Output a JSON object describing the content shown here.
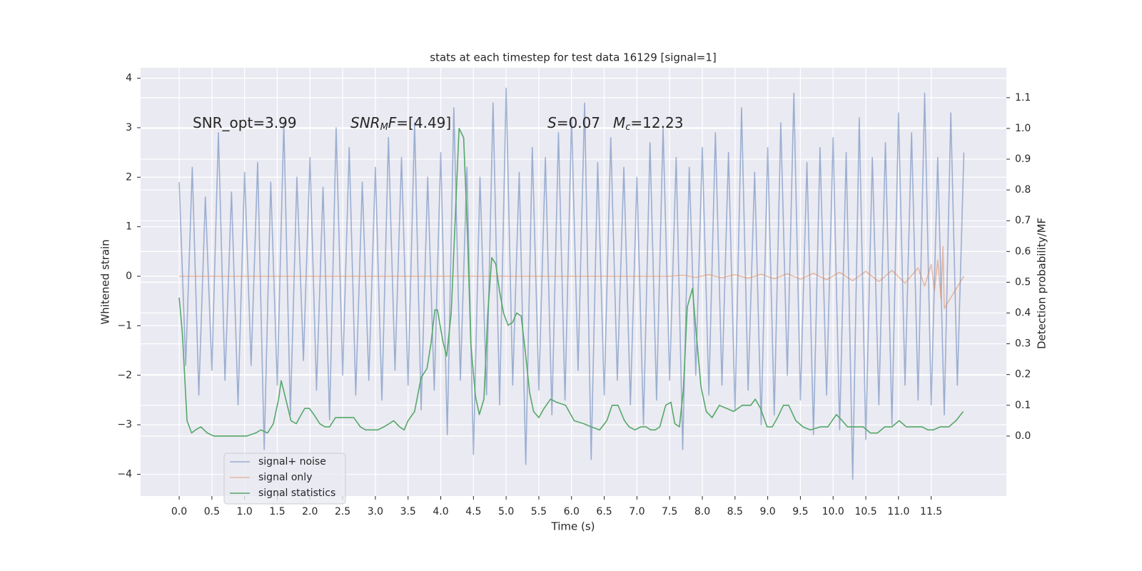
{
  "chart_data": {
    "type": "line",
    "title": "stats at each timestep for test data 16129 [signal=1]",
    "xlabel": "Time (s)",
    "ylabel": "Whitened strain",
    "y2label": "Detection probability/MF",
    "xlim": [
      -0.59,
      12.65
    ],
    "ylim": [
      -4.44,
      4.21
    ],
    "y2lim": [
      -0.195,
      1.197
    ],
    "xticks": [
      {
        "value": 0,
        "label": "0.0"
      },
      {
        "value": 0.5,
        "label": "0.5"
      },
      {
        "value": 1,
        "label": "1.0"
      },
      {
        "value": 1.5,
        "label": "1.5"
      },
      {
        "value": 2,
        "label": "2.0"
      },
      {
        "value": 2.5,
        "label": "2.5"
      },
      {
        "value": 3,
        "label": "3.0"
      },
      {
        "value": 3.5,
        "label": "3.5"
      },
      {
        "value": 4,
        "label": "4.0"
      },
      {
        "value": 4.5,
        "label": "4.5"
      },
      {
        "value": 5,
        "label": "5.0"
      },
      {
        "value": 5.5,
        "label": "5.5"
      },
      {
        "value": 6,
        "label": "6.0"
      },
      {
        "value": 6.5,
        "label": "6.5"
      },
      {
        "value": 7,
        "label": "7.0"
      },
      {
        "value": 7.5,
        "label": "7.5"
      },
      {
        "value": 8,
        "label": "8.0"
      },
      {
        "value": 8.5,
        "label": "8.5"
      },
      {
        "value": 9,
        "label": "9.0"
      },
      {
        "value": 9.5,
        "label": "9.5"
      },
      {
        "value": 10,
        "label": "10.0"
      },
      {
        "value": 10.5,
        "label": "10.5"
      },
      {
        "value": 11,
        "label": "11.0"
      },
      {
        "value": 11.5,
        "label": "11.5"
      }
    ],
    "yticks": [
      {
        "value": -4,
        "label": "−4"
      },
      {
        "value": -3,
        "label": "−3"
      },
      {
        "value": -2,
        "label": "−2"
      },
      {
        "value": -1,
        "label": "−1"
      },
      0,
      1,
      2,
      3,
      4
    ],
    "y2ticks": [
      {
        "value": 0,
        "label": "0.0"
      },
      {
        "value": 0.1,
        "label": "0.1"
      },
      {
        "value": 0.2,
        "label": "0.2"
      },
      {
        "value": 0.3,
        "label": "0.3"
      },
      {
        "value": 0.4,
        "label": "0.4"
      },
      {
        "value": 0.5,
        "label": "0.5"
      },
      {
        "value": 0.6,
        "label": "0.6"
      },
      {
        "value": 0.7,
        "label": "0.7"
      },
      {
        "value": 0.8,
        "label": "0.8"
      },
      {
        "value": 0.9,
        "label": "0.9"
      },
      {
        "value": 1.0,
        "label": "1.0"
      },
      {
        "value": 1.1,
        "label": "1.1"
      }
    ],
    "grid": true,
    "legend_loc": "lower left",
    "annotations": [
      [
        {
          "text": "SNR_opt=3.99",
          "style": "normal"
        }
      ],
      [
        {
          "text": "SNR",
          "style": "italic"
        },
        {
          "text": "M",
          "style": "sub"
        },
        {
          "text": "F",
          "style": "italic"
        },
        {
          "text": "=[4.49]",
          "style": "normal"
        }
      ],
      [
        {
          "text": "S",
          "style": "italic"
        },
        {
          "text": "=0.07",
          "style": "normal"
        }
      ],
      [
        {
          "text": "M",
          "style": "italic"
        },
        {
          "text": "c",
          "style": "sub"
        },
        {
          "text": "=12.23",
          "style": "normal"
        }
      ]
    ],
    "series": [
      {
        "name": "signal+ noise",
        "color": "#4c72b0",
        "opacity": 0.5,
        "axis": "y",
        "x": [
          0.0,
          0.1,
          0.2,
          0.3,
          0.4,
          0.5,
          0.6,
          0.7,
          0.8,
          0.9,
          1.0,
          1.1,
          1.2,
          1.3,
          1.4,
          1.5,
          1.6,
          1.7,
          1.8,
          1.9,
          2.0,
          2.1,
          2.2,
          2.3,
          2.4,
          2.5,
          2.6,
          2.7,
          2.8,
          2.9,
          3.0,
          3.1,
          3.2,
          3.3,
          3.4,
          3.5,
          3.6,
          3.7,
          3.8,
          3.9,
          4.0,
          4.1,
          4.2,
          4.3,
          4.4,
          4.5,
          4.6,
          4.7,
          4.8,
          4.9,
          5.0,
          5.1,
          5.2,
          5.3,
          5.4,
          5.5,
          5.6,
          5.7,
          5.8,
          5.9,
          6.0,
          6.1,
          6.2,
          6.3,
          6.4,
          6.5,
          6.6,
          6.7,
          6.8,
          6.9,
          7.0,
          7.1,
          7.2,
          7.3,
          7.4,
          7.5,
          7.6,
          7.7,
          7.8,
          7.9,
          8.0,
          8.1,
          8.2,
          8.3,
          8.4,
          8.5,
          8.6,
          8.7,
          8.8,
          8.9,
          9.0,
          9.1,
          9.2,
          9.3,
          9.4,
          9.5,
          9.6,
          9.7,
          9.8,
          9.9,
          10.0,
          10.1,
          10.2,
          10.3,
          10.4,
          10.5,
          10.6,
          10.7,
          10.8,
          10.9,
          11.0,
          11.1,
          11.2,
          11.3,
          11.4,
          11.5,
          11.6,
          11.7,
          11.8,
          11.9,
          12.0
        ],
        "values": [
          1.9,
          -1.8,
          2.2,
          -2.4,
          1.6,
          -1.9,
          2.9,
          -2.1,
          1.7,
          -2.6,
          2.1,
          -1.8,
          2.3,
          -3.5,
          1.9,
          -2.2,
          3.1,
          -2.8,
          2.0,
          -1.7,
          2.4,
          -2.3,
          1.8,
          -2.9,
          3.0,
          -2.0,
          2.6,
          -2.4,
          1.9,
          -2.1,
          2.2,
          -2.5,
          2.8,
          -1.9,
          2.4,
          -2.2,
          3.1,
          -2.7,
          2.0,
          -2.3,
          2.5,
          -3.2,
          3.4,
          -2.1,
          2.2,
          -3.6,
          2.0,
          -2.4,
          3.5,
          -2.6,
          3.8,
          -2.2,
          2.1,
          -3.8,
          2.6,
          -2.3,
          2.4,
          -2.8,
          2.9,
          -2.5,
          3.2,
          -1.9,
          3.5,
          -3.7,
          2.3,
          -2.4,
          2.8,
          -2.1,
          2.2,
          -2.6,
          2.0,
          -3.0,
          2.7,
          -2.5,
          3.0,
          -2.1,
          2.4,
          -3.5,
          2.2,
          -2.0,
          2.6,
          -2.4,
          2.9,
          -2.2,
          2.5,
          -2.7,
          3.4,
          -2.3,
          2.1,
          -3.0,
          2.6,
          -2.8,
          3.1,
          -2.0,
          3.7,
          -2.5,
          2.3,
          -3.2,
          2.6,
          -2.4,
          2.8,
          -3.1,
          2.5,
          -4.1,
          3.2,
          -3.3,
          2.4,
          -2.6,
          2.7,
          -3.0,
          3.3,
          -2.2,
          2.9,
          -2.5,
          3.7,
          -2.6,
          2.4,
          -2.8,
          3.3,
          -2.2,
          2.5
        ]
      },
      {
        "name": "signal only",
        "color": "#dd8452",
        "opacity": 0.5,
        "axis": "y",
        "x": [
          0,
          7.5,
          7.7,
          7.9,
          8.1,
          8.3,
          8.5,
          8.7,
          8.9,
          9.1,
          9.3,
          9.5,
          9.7,
          9.9,
          10.1,
          10.3,
          10.5,
          10.7,
          10.9,
          11.1,
          11.3,
          11.4,
          11.5,
          11.55,
          11.6,
          11.65,
          11.68,
          11.7,
          12.0
        ],
        "values": [
          0,
          0,
          0.02,
          -0.02,
          0.03,
          -0.03,
          0.03,
          -0.04,
          0.04,
          -0.05,
          0.05,
          -0.06,
          0.06,
          -0.07,
          0.08,
          -0.09,
          0.1,
          -0.11,
          0.12,
          -0.14,
          0.17,
          -0.2,
          0.24,
          -0.28,
          0.33,
          -0.45,
          0.6,
          -0.65,
          0
        ]
      },
      {
        "name": "signal statistics",
        "color": "#55a868",
        "opacity": 1,
        "axis": "y2",
        "x": [
          0.0,
          0.05,
          0.12,
          0.19,
          0.25,
          0.33,
          0.43,
          0.53,
          0.7,
          0.86,
          1.03,
          1.17,
          1.25,
          1.35,
          1.44,
          1.52,
          1.56,
          1.63,
          1.71,
          1.79,
          1.84,
          1.92,
          1.99,
          2.06,
          2.15,
          2.23,
          2.3,
          2.39,
          2.48,
          2.59,
          2.67,
          2.77,
          2.85,
          2.94,
          3.04,
          3.13,
          3.21,
          3.28,
          3.37,
          3.44,
          3.5,
          3.6,
          3.7,
          3.79,
          3.85,
          3.91,
          3.95,
          4.03,
          4.09,
          4.16,
          4.21,
          4.28,
          4.35,
          4.41,
          4.46,
          4.53,
          4.59,
          4.66,
          4.72,
          4.78,
          4.84,
          4.9,
          4.96,
          5.03,
          5.1,
          5.16,
          5.23,
          5.29,
          5.36,
          5.42,
          5.5,
          5.58,
          5.68,
          5.77,
          5.91,
          6.04,
          6.19,
          6.3,
          6.43,
          6.54,
          6.62,
          6.71,
          6.81,
          6.88,
          6.97,
          7.06,
          7.14,
          7.21,
          7.28,
          7.35,
          7.44,
          7.52,
          7.58,
          7.65,
          7.71,
          7.77,
          7.85,
          7.9,
          7.98,
          8.06,
          8.15,
          8.26,
          8.37,
          8.48,
          8.61,
          8.74,
          8.81,
          8.89,
          8.99,
          9.07,
          9.15,
          9.24,
          9.32,
          9.43,
          9.54,
          9.65,
          9.81,
          9.92,
          10.05,
          10.14,
          10.22,
          10.33,
          10.46,
          10.57,
          10.68,
          10.79,
          10.9,
          11.01,
          11.12,
          11.25,
          11.36,
          11.45,
          11.53,
          11.64,
          11.77,
          11.88,
          11.99
        ],
        "values": [
          0.45,
          0.33,
          0.05,
          0.01,
          0.02,
          0.03,
          0.01,
          0.0,
          0.0,
          0.0,
          0.0,
          0.01,
          0.02,
          0.01,
          0.04,
          0.12,
          0.18,
          0.12,
          0.05,
          0.04,
          0.06,
          0.09,
          0.09,
          0.07,
          0.04,
          0.03,
          0.03,
          0.06,
          0.06,
          0.06,
          0.06,
          0.03,
          0.02,
          0.02,
          0.02,
          0.03,
          0.04,
          0.05,
          0.03,
          0.02,
          0.05,
          0.08,
          0.19,
          0.22,
          0.3,
          0.41,
          0.41,
          0.31,
          0.26,
          0.4,
          0.65,
          1.0,
          0.97,
          0.65,
          0.3,
          0.13,
          0.07,
          0.12,
          0.4,
          0.58,
          0.56,
          0.47,
          0.4,
          0.36,
          0.37,
          0.4,
          0.39,
          0.28,
          0.14,
          0.08,
          0.06,
          0.09,
          0.12,
          0.11,
          0.1,
          0.05,
          0.04,
          0.03,
          0.02,
          0.05,
          0.1,
          0.1,
          0.05,
          0.03,
          0.02,
          0.03,
          0.03,
          0.02,
          0.02,
          0.03,
          0.1,
          0.11,
          0.04,
          0.03,
          0.15,
          0.42,
          0.48,
          0.35,
          0.16,
          0.08,
          0.06,
          0.1,
          0.09,
          0.08,
          0.1,
          0.1,
          0.12,
          0.09,
          0.03,
          0.03,
          0.06,
          0.1,
          0.1,
          0.05,
          0.03,
          0.02,
          0.03,
          0.03,
          0.07,
          0.05,
          0.03,
          0.03,
          0.03,
          0.01,
          0.01,
          0.03,
          0.03,
          0.05,
          0.03,
          0.03,
          0.03,
          0.02,
          0.02,
          0.03,
          0.03,
          0.05,
          0.08
        ]
      }
    ]
  }
}
